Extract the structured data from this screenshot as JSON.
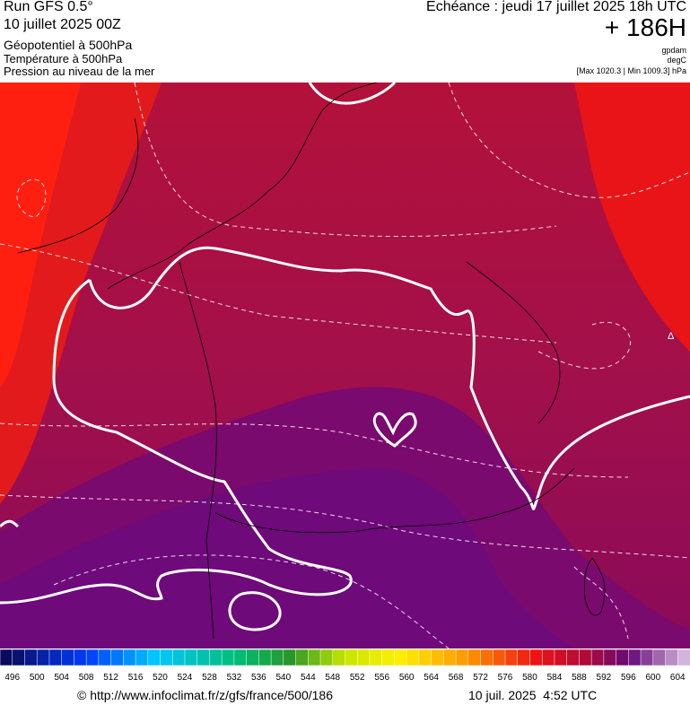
{
  "header": {
    "left": [
      "Run GFS 0.5°",
      "10 juillet 2025 00Z",
      "Géopotentiel à 500hPa",
      "Température à 500hPa",
      "Pression au niveau de la mer"
    ],
    "right": {
      "echeance": "Echéance : jeudi 17 juillet 2025 18h UTC",
      "hour": "+ 186H",
      "unit1": "gpdam",
      "unit2": "degC",
      "range": "[Max 1020.3 | Min 1009.3] hPa"
    }
  },
  "map": {
    "marker": "Δ"
  },
  "colorbar": {
    "labels": [
      496,
      500,
      504,
      508,
      512,
      516,
      520,
      524,
      528,
      532,
      536,
      540,
      544,
      548,
      552,
      556,
      560,
      564,
      568,
      572,
      576,
      580,
      584,
      588,
      592,
      596,
      600,
      604
    ]
  },
  "footer": {
    "source": "© http://www.infoclimat.fr/z/gfs/france/500/186",
    "date": "10 juil. 2025  4:52 UTC"
  }
}
